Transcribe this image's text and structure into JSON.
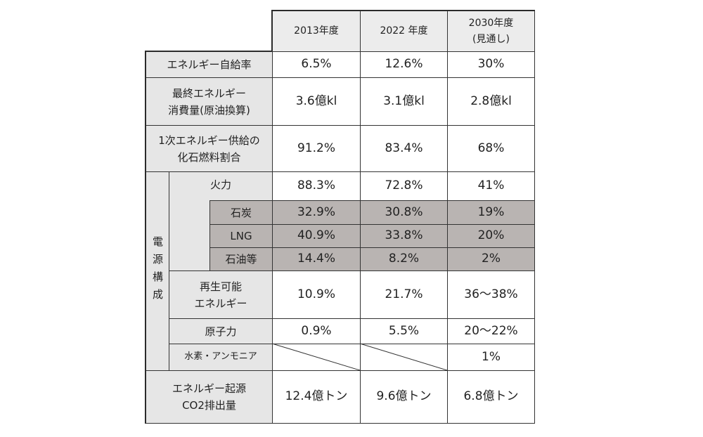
{
  "table": {
    "columns": [
      [
        "2013年度"
      ],
      [
        "2022 年度"
      ],
      [
        "2030年度",
        "(見通し)"
      ]
    ],
    "rows": [
      {
        "label": [
          "エネルギー自給率"
        ],
        "values": [
          "6.5%",
          "12.6%",
          "30%"
        ]
      },
      {
        "label": [
          "最終エネルギー",
          "消費量(原油換算)"
        ],
        "values": [
          "3.6億kl",
          "3.1億kl",
          "2.8億kl"
        ]
      },
      {
        "label": [
          "1次エネルギー供給の",
          "化石燃料割合"
        ],
        "values": [
          "91.2%",
          "83.4%",
          "68%"
        ]
      }
    ],
    "power_mix": {
      "label": "電源構成",
      "rows": [
        {
          "label": [
            "火力"
          ],
          "values": [
            "88.3%",
            "72.8%",
            "41%"
          ]
        },
        {
          "label": [
            "石炭"
          ],
          "values": [
            "32.9%",
            "30.8%",
            "19%"
          ]
        },
        {
          "label": [
            "LNG"
          ],
          "values": [
            "40.9%",
            "33.8%",
            "20%"
          ]
        },
        {
          "label": [
            "石油等"
          ],
          "values": [
            "14.4%",
            "8.2%",
            "2%"
          ]
        },
        {
          "label": [
            "再生可能",
            "エネルギー"
          ],
          "values": [
            "10.9%",
            "21.7%",
            "36〜38%"
          ]
        },
        {
          "label": [
            "原子力"
          ],
          "values": [
            "0.9%",
            "5.5%",
            "20〜22%"
          ]
        },
        {
          "label": [
            "水素・アンモニア"
          ],
          "values": [
            null,
            null,
            "1%"
          ]
        }
      ]
    },
    "co2": {
      "label": [
        "エネルギー起源",
        "CO2排出量"
      ],
      "values": [
        "12.4億トン",
        "9.6億トン",
        "6.8億トン"
      ]
    }
  }
}
